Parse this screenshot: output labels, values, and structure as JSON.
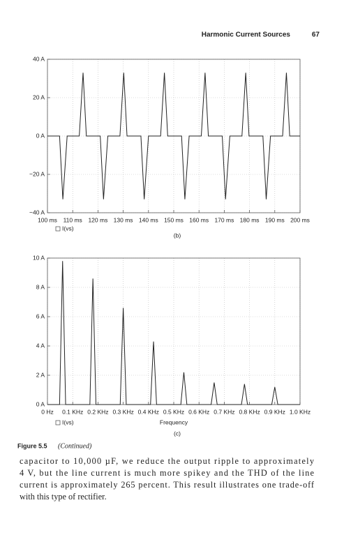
{
  "header": {
    "title": "Harmonic Current Sources",
    "page": "67"
  },
  "chart_data": [
    {
      "type": "line",
      "label": "(b)",
      "x": [
        100,
        104.8,
        106.1,
        107.8,
        112.6,
        114.1,
        115.4,
        120.9,
        122.2,
        123.9,
        128.7,
        130.2,
        131.5,
        137.0,
        138.3,
        140.0,
        144.8,
        146.3,
        147.6,
        153.1,
        154.4,
        156.1,
        160.9,
        162.4,
        163.7,
        169.2,
        170.5,
        172.2,
        177.0,
        178.5,
        179.8,
        185.3,
        186.6,
        188.3,
        193.1,
        194.6,
        195.9,
        200
      ],
      "series": [
        {
          "name": "I(vs)",
          "color": "#222222",
          "values": [
            0,
            0,
            -33,
            0,
            0,
            33,
            0,
            0,
            -33,
            0,
            0,
            33,
            0,
            0,
            -33,
            0,
            0,
            33,
            0,
            0,
            -33,
            0,
            0,
            33,
            0,
            0,
            -33,
            0,
            0,
            33,
            0,
            0,
            -33,
            0,
            0,
            33,
            0,
            0
          ]
        }
      ],
      "xlim": [
        100,
        200
      ],
      "xticks": [
        {
          "value": 100,
          "label": "100 ms"
        },
        {
          "value": 110,
          "label": "110 ms"
        },
        {
          "value": 120,
          "label": "120 ms"
        },
        {
          "value": 130,
          "label": "130 ms"
        },
        {
          "value": 140,
          "label": "140 ms"
        },
        {
          "value": 150,
          "label": "150 ms"
        },
        {
          "value": 160,
          "label": "160 ms"
        },
        {
          "value": 170,
          "label": "170 ms"
        },
        {
          "value": 180,
          "label": "180 ms"
        },
        {
          "value": 190,
          "label": "190 ms"
        },
        {
          "value": 200,
          "label": "200 ms"
        }
      ],
      "ylim": [
        -40,
        40
      ],
      "yticks": [
        {
          "value": -40,
          "label": "−40 A"
        },
        {
          "value": -20,
          "label": "−20 A"
        },
        {
          "value": 0,
          "label": "0 A"
        },
        {
          "value": 20,
          "label": "20 A"
        },
        {
          "value": 40,
          "label": "40 A"
        }
      ],
      "grid": true
    },
    {
      "type": "line",
      "label": "(c)",
      "x_label": "Frequency",
      "x": [
        0,
        0.048,
        0.06,
        0.072,
        0.168,
        0.18,
        0.192,
        0.288,
        0.3,
        0.312,
        0.408,
        0.42,
        0.432,
        0.528,
        0.54,
        0.552,
        0.648,
        0.66,
        0.672,
        0.768,
        0.78,
        0.792,
        0.888,
        0.9,
        0.912,
        1.0
      ],
      "series": [
        {
          "name": "I(vs)",
          "color": "#222222",
          "values": [
            0,
            0,
            9.8,
            0,
            0,
            8.6,
            0,
            0,
            6.6,
            0,
            0,
            4.3,
            0,
            0,
            2.2,
            0,
            0,
            1.5,
            0,
            0,
            1.4,
            0,
            0,
            1.2,
            0,
            0
          ]
        }
      ],
      "xlim": [
        0,
        1.0
      ],
      "xticks": [
        {
          "value": 0,
          "label": "0 Hz"
        },
        {
          "value": 0.1,
          "label": "0.1 KHz"
        },
        {
          "value": 0.2,
          "label": "0.2 KHz"
        },
        {
          "value": 0.3,
          "label": "0.3 KHz"
        },
        {
          "value": 0.4,
          "label": "0.4 KHz"
        },
        {
          "value": 0.5,
          "label": "0.5 KHz"
        },
        {
          "value": 0.6,
          "label": "0.6 KHz"
        },
        {
          "value": 0.7,
          "label": "0.7 KHz"
        },
        {
          "value": 0.8,
          "label": "0.8 KHz"
        },
        {
          "value": 0.9,
          "label": "0.9 KHz"
        },
        {
          "value": 1.0,
          "label": "1.0 KHz"
        }
      ],
      "ylim": [
        0,
        10
      ],
      "yticks": [
        {
          "value": 0,
          "label": "0 A"
        },
        {
          "value": 2,
          "label": "2 A"
        },
        {
          "value": 4,
          "label": "4 A"
        },
        {
          "value": 6,
          "label": "6 A"
        },
        {
          "value": 8,
          "label": "8 A"
        },
        {
          "value": 10,
          "label": "10 A"
        }
      ],
      "grid": true
    }
  ],
  "caption": {
    "label": "Figure 5.5",
    "text": "(Continued)"
  },
  "body": [
    "capacitor to 10,000 µF, we reduce the output ripple to approximately",
    "4 V, but the line current is much more spikey and the THD of the line",
    "current is approximately 265 percent. This result illustrates one trade-off",
    "with this type of rectifier."
  ]
}
